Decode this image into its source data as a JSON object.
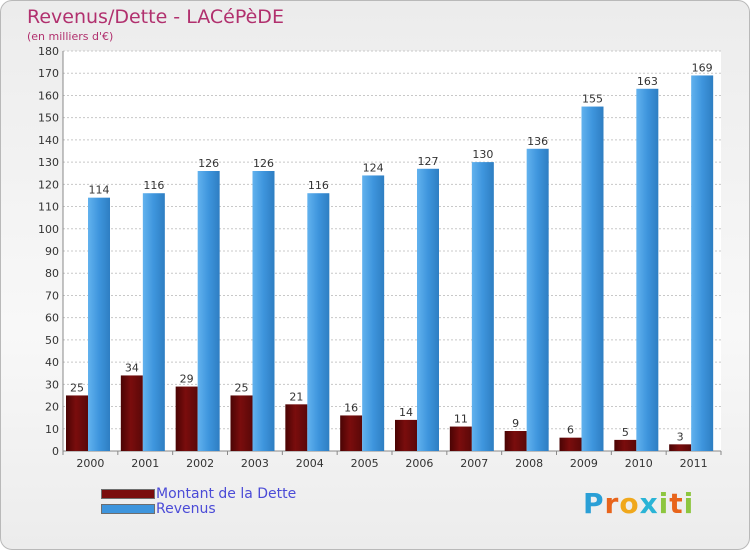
{
  "header": {
    "title": "Revenus/Dette - LACéPèDE",
    "subtitle": "(en milliers d'€)"
  },
  "chart_data": {
    "type": "bar",
    "title": "Revenus/Dette - LACéPèDE",
    "ylabel": "(en milliers d'€)",
    "xlabel": "",
    "categories": [
      "2000",
      "2001",
      "2002",
      "2003",
      "2004",
      "2005",
      "2006",
      "2007",
      "2008",
      "2009",
      "2010",
      "2011"
    ],
    "series": [
      {
        "name": "Montant de la Dette",
        "color": "#7a0d0d",
        "values": [
          25,
          34,
          29,
          25,
          21,
          16,
          14,
          11,
          9,
          6,
          5,
          3
        ]
      },
      {
        "name": "Revenus",
        "color": "#3e95dd",
        "values": [
          114,
          116,
          126,
          126,
          116,
          124,
          127,
          130,
          136,
          155,
          163,
          169
        ]
      }
    ],
    "ylim": [
      0,
      180
    ],
    "ytick_step": 10,
    "grid": true,
    "legend": "bottom-left"
  },
  "legend": {
    "items": [
      {
        "label": "Montant de la Dette",
        "color": "#7a0d0d"
      },
      {
        "label": "Revenus",
        "color": "#3e95dd"
      }
    ]
  },
  "logo": {
    "letters": [
      "P",
      "r",
      "o",
      "x",
      "i",
      "t",
      "i"
    ],
    "colors": [
      "#2a9fd6",
      "#e8641b",
      "#f0a81c",
      "#2ab4d6",
      "#8dc63f",
      "#e8641b",
      "#8dc63f"
    ]
  }
}
